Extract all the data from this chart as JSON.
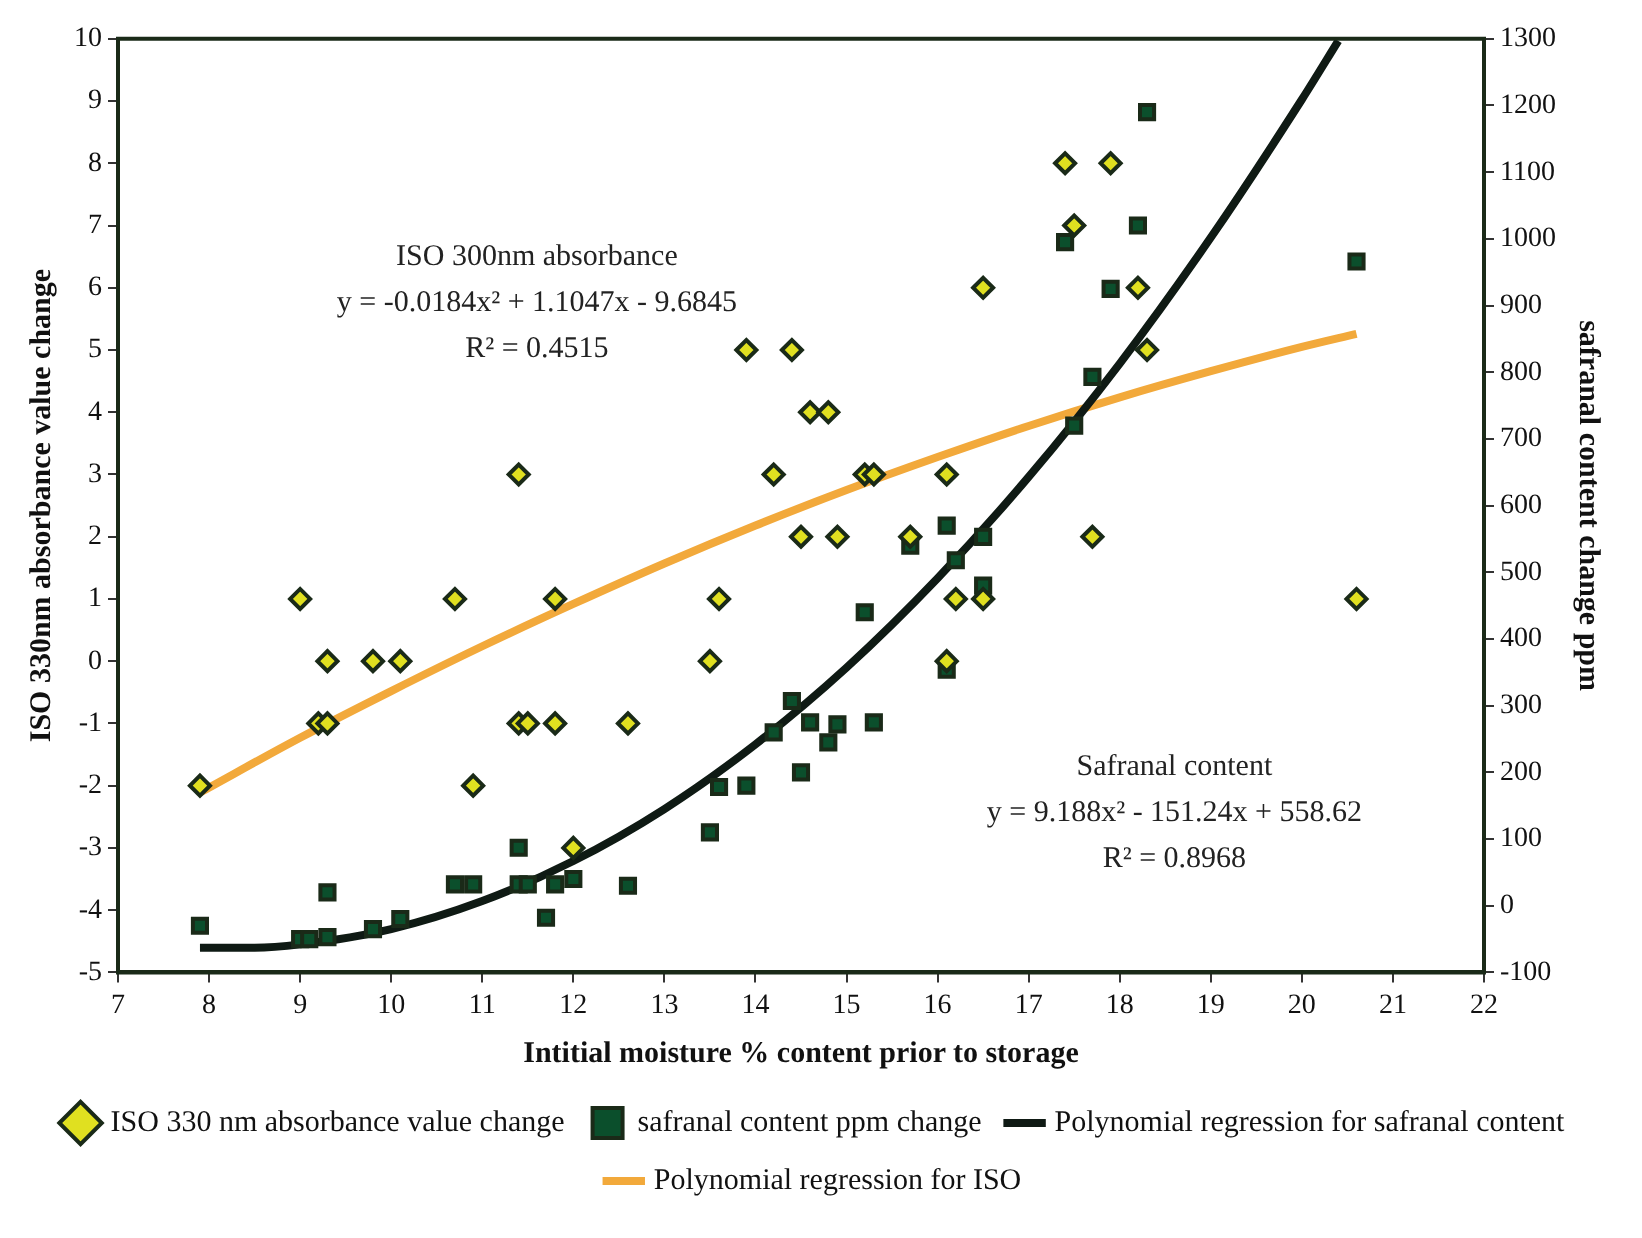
{
  "chart_data": {
    "type": "scatter",
    "xlabel": "Intitial moisture % content prior to storage",
    "ylabel": "ISO 330nm absorbance value change",
    "y2label": "safranal content change ppm",
    "xlim": [
      7,
      22
    ],
    "xticks": [
      7,
      8,
      9,
      10,
      11,
      12,
      13,
      14,
      15,
      16,
      17,
      18,
      19,
      20,
      21,
      22
    ],
    "ylim": [
      -5,
      10
    ],
    "yticks": [
      -5,
      -4,
      -3,
      -2,
      -1,
      0,
      1,
      2,
      3,
      4,
      5,
      6,
      7,
      8,
      9,
      10
    ],
    "y2lim": [
      -100,
      1300
    ],
    "y2ticks": [
      -100,
      0,
      100,
      200,
      300,
      400,
      500,
      600,
      700,
      800,
      900,
      1000,
      1100,
      1200,
      1300
    ],
    "grid": false,
    "legend": "bottom",
    "annotations": [
      "ISO 300nm absorbance",
      "y = -0.0184x² + 1.1047x - 9.6845",
      "R² = 0.4515",
      "Safranal content",
      "y = 9.188x² - 151.24x + 558.62",
      "R² = 0.8968"
    ],
    "series": [
      {
        "name": "ISO 330 nm absorbance value change",
        "type": "scatter",
        "marker": "diamond",
        "color": "#e0e020",
        "x": [
          7.9,
          9,
          9.2,
          9.3,
          9.3,
          9.8,
          10.1,
          10.7,
          10.9,
          11.4,
          11.4,
          11.5,
          11.8,
          11.8,
          12,
          12.6,
          13.5,
          13.6,
          13.9,
          14.2,
          14.4,
          14.5,
          14.6,
          14.8,
          14.9,
          15.2,
          15.3,
          15.7,
          16.1,
          16.1,
          16.2,
          16.5,
          16.5,
          17.4,
          17.5,
          17.7,
          17.9,
          18.2,
          18.3,
          20.6
        ],
        "values": [
          -2,
          1,
          -1,
          -1,
          0,
          0,
          0,
          1,
          -2,
          3,
          -1,
          -1,
          1,
          -1,
          -3,
          -1,
          0,
          1,
          5,
          3,
          5,
          2,
          4,
          4,
          2,
          3,
          3,
          2,
          3,
          0,
          1,
          6,
          1,
          8,
          7,
          2,
          8,
          6,
          5,
          1
        ]
      },
      {
        "name": "safranal content ppm change",
        "type": "scatter",
        "marker": "square",
        "axis": "y2",
        "color": "#0b4f2c",
        "x": [
          7.9,
          9,
          9.1,
          9.3,
          9.3,
          9.8,
          10.1,
          10.7,
          10.9,
          11.4,
          11.4,
          11.5,
          11.7,
          11.8,
          12,
          12.6,
          13.5,
          13.6,
          13.9,
          14.2,
          14.4,
          14.5,
          14.6,
          14.8,
          14.9,
          15.2,
          15.3,
          15.7,
          16.1,
          16.1,
          16.2,
          16.5,
          16.5,
          17.4,
          17.5,
          17.7,
          17.9,
          18.2,
          18.3,
          20.6
        ],
        "values": [
          -30,
          -50,
          -50,
          -47,
          20,
          -35,
          -20,
          32,
          32,
          87,
          32,
          32,
          -18,
          32,
          40,
          30,
          110,
          178,
          180,
          260,
          307,
          200,
          275,
          245,
          272,
          440,
          275,
          540,
          570,
          354,
          518,
          553,
          480,
          995,
          720,
          793,
          925,
          1020,
          1190,
          966
        ]
      },
      {
        "name": "Polynomial regression for safranal content",
        "type": "line",
        "marker": "none",
        "axis": "y2",
        "color": "#0f1a14",
        "x": [
          7.9,
          8.5,
          9,
          10,
          11,
          12,
          13,
          14,
          15,
          16,
          17,
          18,
          19,
          20,
          20.4
        ],
        "values": [
          -63,
          -63,
          -58,
          -35,
          7,
          67,
          145,
          242,
          357,
          491,
          643,
          813,
          1002,
          1209,
          1297
        ]
      },
      {
        "name": "Polynomial regression for ISO",
        "type": "line",
        "marker": "none",
        "color": "#f2a93b",
        "x": [
          7.9,
          9,
          10,
          11,
          12,
          13,
          14,
          15,
          16,
          17,
          18,
          19,
          20,
          20.6
        ],
        "values": [
          -2.11,
          -1.23,
          -0.48,
          0.24,
          0.92,
          1.57,
          2.18,
          2.75,
          3.28,
          3.78,
          4.24,
          4.66,
          5.05,
          5.26
        ]
      }
    ]
  }
}
